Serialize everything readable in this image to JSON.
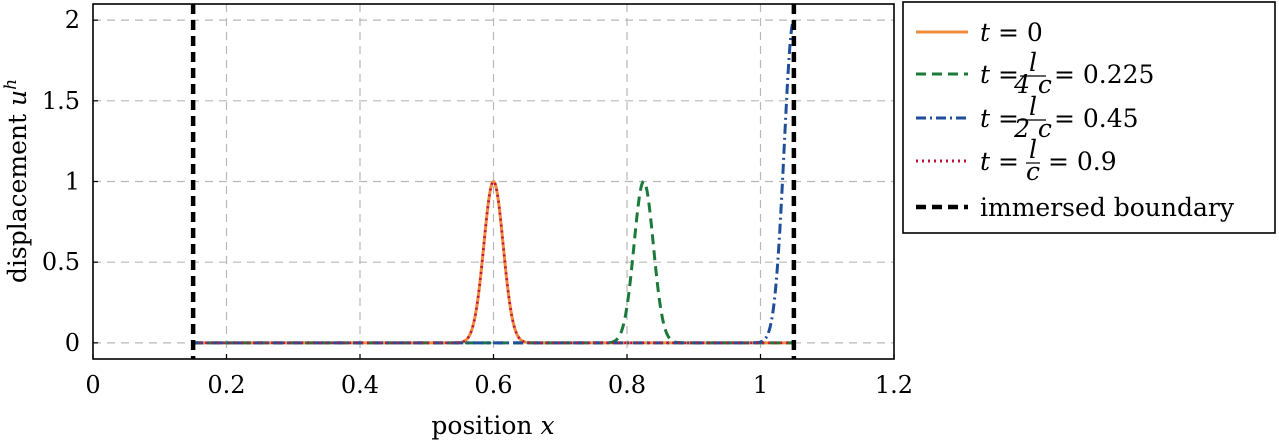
{
  "chart_data": {
    "type": "line",
    "xlabel": "position",
    "xlabel_var": "x",
    "ylabel": "displacement",
    "ylabel_var": "u",
    "ylabel_sup": "h",
    "xlim": [
      0,
      1.2
    ],
    "ylim": [
      -0.1,
      2.1
    ],
    "xticks": [
      0,
      0.2,
      0.4,
      0.6,
      0.8,
      1,
      1.2
    ],
    "xtick_labels": [
      "0",
      "0.2",
      "0.4",
      "0.6",
      "0.8",
      "1",
      "1.2"
    ],
    "yticks": [
      0,
      0.5,
      1,
      1.5,
      2
    ],
    "ytick_labels": [
      "0",
      "0.5",
      "1",
      "1.5",
      "2"
    ],
    "grid": true,
    "legend_position": "outside-right",
    "series": [
      {
        "label_lhs": "t",
        "label_rhs": "= 0",
        "color": "#f08a3c",
        "style": "solid",
        "gaussian": {
          "center": 0.6,
          "amplitude": 1,
          "sigma": 0.0145,
          "x_range": [
            0.15,
            1.05
          ]
        }
      },
      {
        "label_lhs": "t",
        "label_frac_num": "l",
        "label_frac_den": "4 c",
        "label_rhs": "= 0.225",
        "color": "#1b7a3a",
        "style": "dashed",
        "gaussian": {
          "center": 0.825,
          "amplitude": 1,
          "sigma": 0.0145,
          "x_range": [
            0.15,
            1.05
          ]
        }
      },
      {
        "label_lhs": "t",
        "label_frac_num": "l",
        "label_frac_den": "2 c",
        "label_rhs": "= 0.45",
        "color": "#1f4e9a",
        "style": "dashdot",
        "gaussian": {
          "center": 1.05,
          "amplitude": 2,
          "sigma": 0.0145,
          "x_range": [
            0.15,
            1.05
          ]
        }
      },
      {
        "label_lhs": "t",
        "label_frac_num": "l",
        "label_frac_den": "c",
        "label_rhs": "= 0.9",
        "color": "#c0143c",
        "style": "dotted",
        "gaussian": {
          "center": 0.6,
          "amplitude": 1,
          "sigma": 0.0145,
          "x_range": [
            0.15,
            1.05
          ]
        }
      }
    ],
    "boundary": {
      "label": "immersed boundary",
      "color": "#000000",
      "style": "dashed",
      "x": [
        0.15,
        1.05
      ]
    }
  }
}
